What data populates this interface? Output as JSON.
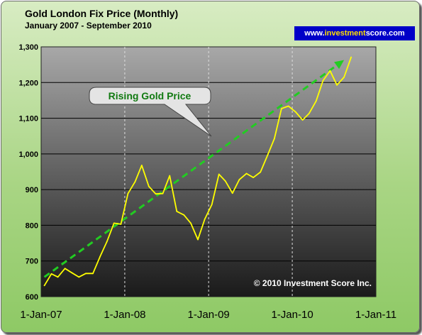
{
  "chart_data": {
    "type": "line",
    "title": "Gold London Fix Price (Monthly)",
    "subtitle": "January 2007 - September 2010",
    "ylim": [
      600,
      1300
    ],
    "yticks": [
      600,
      700,
      800,
      900,
      1000,
      1100,
      1200,
      1300
    ],
    "ytick_labels": [
      "600",
      "700",
      "800",
      "900",
      "1,000",
      "1,100",
      "1,200",
      "1,300"
    ],
    "xlim": [
      "2007-01-01",
      "2011-01-01"
    ],
    "xticks": [
      "2007-01-01",
      "2008-01-01",
      "2009-01-01",
      "2010-01-01",
      "2011-01-01"
    ],
    "xtick_labels": [
      "1-Jan-07",
      "1-Jan-08",
      "1-Jan-09",
      "1-Jan-10",
      "1-Jan-11"
    ],
    "grid": true,
    "series": [
      {
        "color": "#ffff00",
        "x": [
          "2007-01",
          "2007-02",
          "2007-03",
          "2007-04",
          "2007-05",
          "2007-06",
          "2007-07",
          "2007-08",
          "2007-09",
          "2007-10",
          "2007-11",
          "2007-12",
          "2008-01",
          "2008-02",
          "2008-03",
          "2008-04",
          "2008-05",
          "2008-06",
          "2008-07",
          "2008-08",
          "2008-09",
          "2008-10",
          "2008-11",
          "2008-12",
          "2009-01",
          "2009-02",
          "2009-03",
          "2009-04",
          "2009-05",
          "2009-06",
          "2009-07",
          "2009-08",
          "2009-09",
          "2009-10",
          "2009-11",
          "2009-12",
          "2010-01",
          "2010-02",
          "2010-03",
          "2010-04",
          "2010-05",
          "2010-06",
          "2010-07",
          "2010-08",
          "2010-09"
        ],
        "values": [
          631,
          664,
          655,
          679,
          667,
          655,
          665,
          665,
          712,
          754,
          806,
          803,
          889,
          922,
          968,
          909,
          888,
          889,
          939,
          839,
          829,
          806,
          760,
          817,
          858,
          943,
          924,
          890,
          928,
          945,
          934,
          949,
          996,
          1043,
          1127,
          1134,
          1118,
          1095,
          1113,
          1148,
          1205,
          1233,
          1193,
          1215,
          1271
        ]
      }
    ],
    "trend_arrow": {
      "from": {
        "x": "2007-01",
        "y": 655
      },
      "to": {
        "x": "2010-08",
        "y": 1263
      },
      "color": "#22cc22"
    },
    "annotations": [
      "Rising Gold Price",
      "© 2010 Investment Score Inc."
    ]
  },
  "brand": {
    "prefix": "www.",
    "highlight": "investment",
    "suffix": "score.com"
  }
}
